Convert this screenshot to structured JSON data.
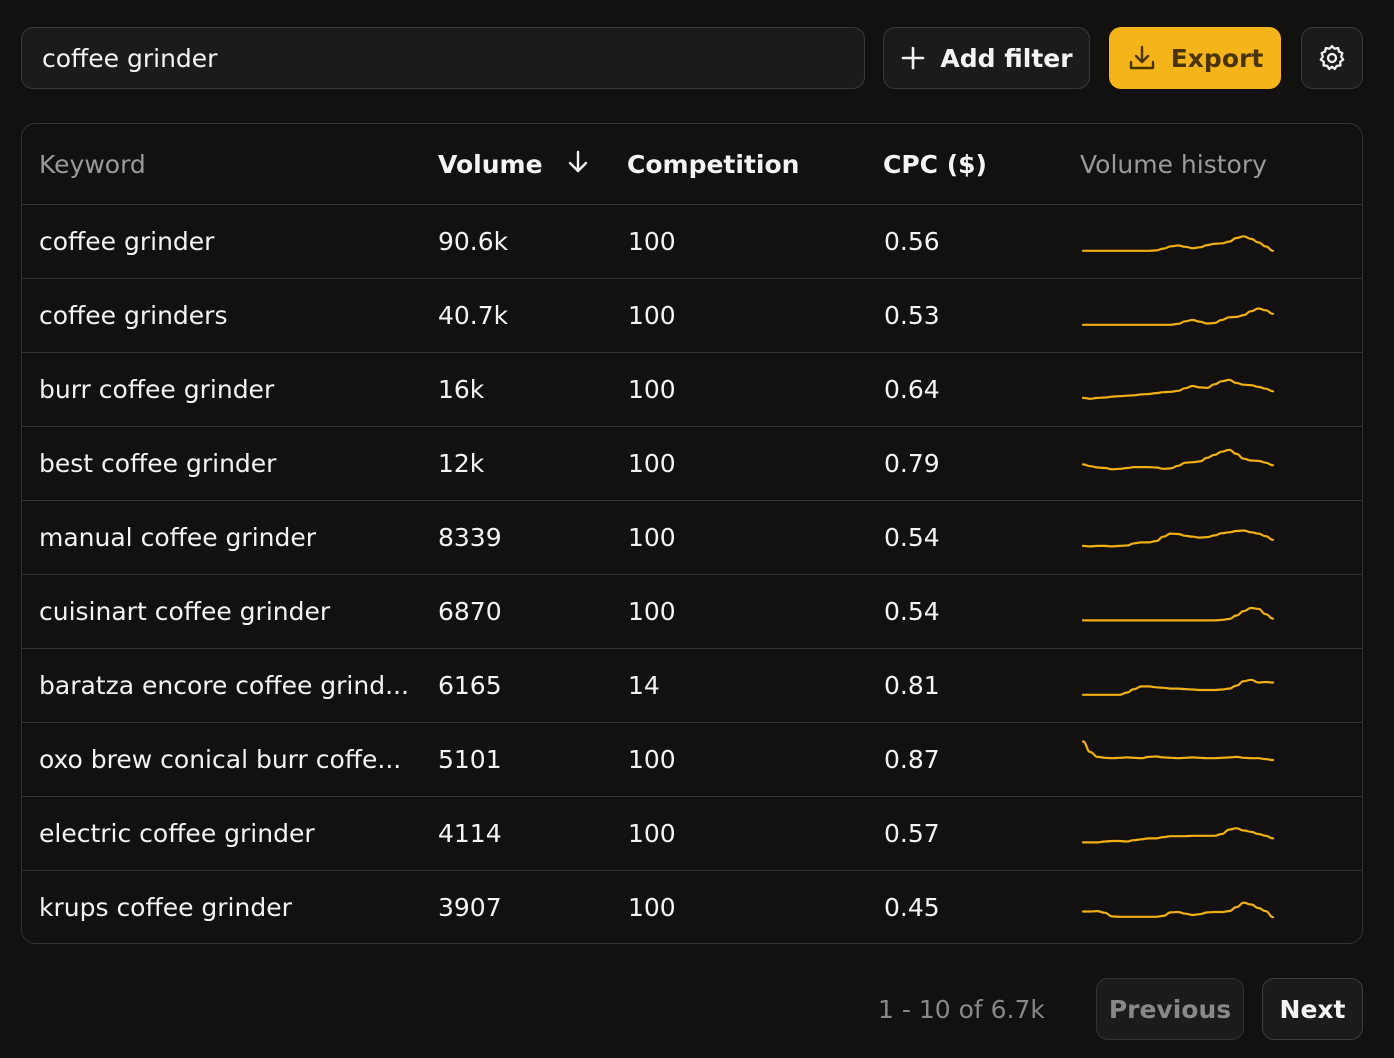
{
  "search": {
    "value": "coffee grinder"
  },
  "toolbar": {
    "add_filter_label": "Add filter",
    "export_label": "Export",
    "accent_color": "#f4b41a"
  },
  "table": {
    "columns": {
      "keyword": "Keyword",
      "volume": "Volume",
      "competition": "Competition",
      "cpc": "CPC ($)",
      "history": "Volume history"
    },
    "sort": {
      "column": "volume",
      "direction": "descending",
      "icon": "arrow-down-icon"
    },
    "sparkline_color": "#f0b014",
    "rows": [
      {
        "keyword": "coffee grinder",
        "volume": "90.6k",
        "competition": "100",
        "cpc": "0.56",
        "history": [
          30,
          30,
          30,
          30,
          30,
          30,
          30,
          30,
          30,
          30,
          31,
          35,
          40,
          42,
          39,
          36,
          38,
          43,
          46,
          47,
          51,
          59,
          63,
          57,
          49,
          40,
          30
        ]
      },
      {
        "keyword": "coffee grinders",
        "volume": "40.7k",
        "competition": "100",
        "cpc": "0.53",
        "history": [
          30,
          30,
          30,
          30,
          30,
          30,
          30,
          30,
          30,
          30,
          30,
          30,
          30,
          32,
          38,
          41,
          37,
          33,
          34,
          41,
          47,
          48,
          52,
          61,
          67,
          63,
          55
        ]
      },
      {
        "keyword": "burr coffee grinder",
        "volume": "16k",
        "competition": "100",
        "cpc": "0.64",
        "history": [
          32,
          30,
          32,
          33,
          35,
          36,
          37,
          38,
          40,
          41,
          43,
          45,
          46,
          48,
          54,
          59,
          56,
          55,
          63,
          70,
          73,
          66,
          62,
          61,
          57,
          53,
          47
        ]
      },
      {
        "keyword": "best coffee grinder",
        "volume": "12k",
        "competition": "100",
        "cpc": "0.79",
        "history": [
          49,
          45,
          42,
          41,
          38,
          39,
          41,
          43,
          43,
          43,
          42,
          39,
          40,
          46,
          53,
          54,
          56,
          64,
          71,
          78,
          82,
          73,
          62,
          58,
          57,
          53,
          47
        ]
      },
      {
        "keyword": "manual coffee grinder",
        "volume": "8339",
        "competition": "100",
        "cpc": "0.54",
        "history": [
          32,
          31,
          32,
          32,
          31,
          32,
          33,
          38,
          40,
          40,
          43,
          53,
          60,
          59,
          55,
          53,
          51,
          52,
          56,
          61,
          63,
          66,
          67,
          63,
          60,
          54,
          46
        ]
      },
      {
        "keyword": "cuisinart coffee grinder",
        "volume": "6870",
        "competition": "100",
        "cpc": "0.54",
        "history": [
          31,
          31,
          31,
          31,
          31,
          31,
          31,
          31,
          31,
          31,
          31,
          31,
          31,
          31,
          31,
          31,
          31,
          31,
          31,
          32,
          34,
          42,
          52,
          59,
          57,
          45,
          35
        ]
      },
      {
        "keyword": "baratza encore coffee grind...",
        "volume": "6165",
        "competition": "14",
        "cpc": "0.81",
        "history": [
          30,
          30,
          30,
          30,
          30,
          30,
          35,
          43,
          49,
          49,
          47,
          46,
          44,
          44,
          43,
          42,
          41,
          41,
          41,
          42,
          44,
          51,
          61,
          64,
          58,
          59,
          58
        ]
      },
      {
        "keyword": "oxo brew conical burr coffe...",
        "volume": "5101",
        "competition": "100",
        "cpc": "0.87",
        "history": [
          92,
          68,
          57,
          55,
          54,
          55,
          56,
          55,
          54,
          57,
          58,
          56,
          55,
          54,
          55,
          56,
          55,
          54,
          54,
          55,
          56,
          57,
          55,
          54,
          54,
          52,
          50
        ]
      },
      {
        "keyword": "electric coffee grinder",
        "volume": "4114",
        "competition": "100",
        "cpc": "0.57",
        "history": [
          31,
          31,
          31,
          33,
          34,
          34,
          33,
          36,
          38,
          40,
          40,
          43,
          45,
          45,
          45,
          46,
          46,
          46,
          46,
          50,
          60,
          63,
          58,
          55,
          50,
          46,
          40
        ]
      },
      {
        "keyword": "krups coffee grinder",
        "volume": "3907",
        "competition": "100",
        "cpc": "0.45",
        "history": [
          42,
          42,
          43,
          39,
          31,
          30,
          30,
          30,
          30,
          30,
          30,
          32,
          40,
          41,
          37,
          34,
          36,
          40,
          41,
          41,
          43,
          52,
          62,
          58,
          50,
          43,
          29
        ]
      }
    ]
  },
  "pagination": {
    "range_text": "1 - 10 of 6.7k",
    "previous_label": "Previous",
    "next_label": "Next"
  }
}
